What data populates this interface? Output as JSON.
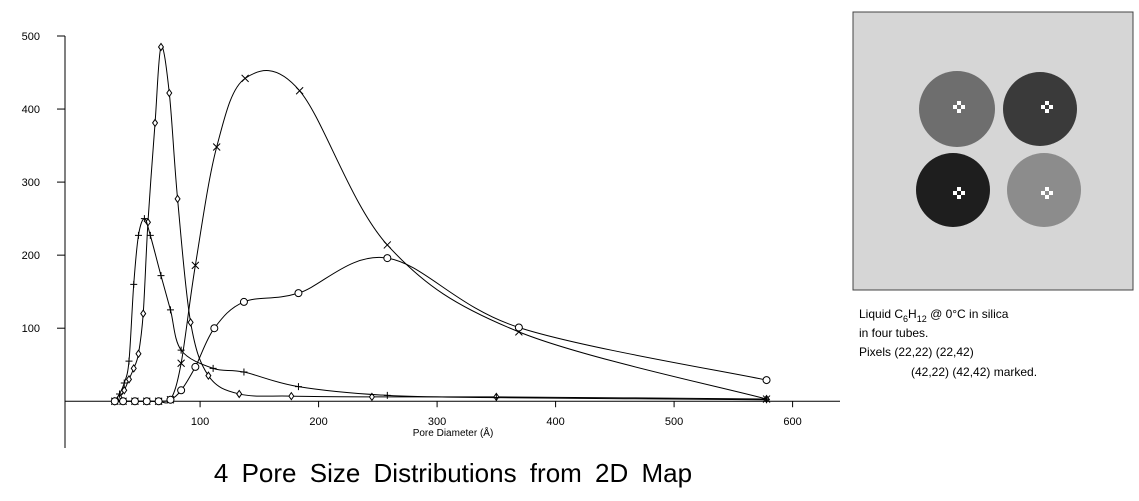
{
  "chart_data": {
    "type": "line",
    "title": "4 Pore Size Distributions from 2D Map",
    "x_label": "Pore Diameter (Å)",
    "xlim": [
      -14,
      640
    ],
    "ylim": [
      -64,
      500
    ],
    "xticks": [
      100,
      200,
      300,
      400,
      500,
      600
    ],
    "yticks": [
      100,
      200,
      300,
      400,
      500
    ],
    "grid": false,
    "series": [
      {
        "marker": "diamond",
        "color": "#000000",
        "x": [
          28,
          32,
          36,
          40,
          44,
          48,
          52,
          56,
          62,
          67,
          74,
          81,
          92,
          107,
          133,
          177,
          245,
          350,
          578
        ],
        "values": [
          0,
          5,
          15,
          30,
          45,
          65,
          120,
          245,
          381,
          485,
          422,
          277,
          108,
          35,
          10,
          7,
          6,
          6,
          3
        ]
      },
      {
        "marker": "plus",
        "color": "#000000",
        "x": [
          28,
          32,
          36,
          40,
          44,
          48,
          53,
          58,
          67,
          75,
          84,
          111,
          137,
          183,
          258,
          350,
          578
        ],
        "values": [
          0,
          10,
          25,
          55,
          160,
          227,
          250,
          227,
          172,
          125,
          70,
          45,
          40,
          20,
          8,
          5,
          2
        ]
      },
      {
        "marker": "cross",
        "color": "#000000",
        "x": [
          28,
          35,
          45,
          55,
          65,
          75,
          84,
          96,
          114,
          138,
          184,
          258,
          369,
          578
        ],
        "values": [
          0,
          0,
          0,
          0,
          0,
          2,
          52,
          186,
          348,
          442,
          425,
          214,
          95,
          3
        ]
      },
      {
        "marker": "circle",
        "color": "#000000",
        "x": [
          28,
          35,
          45,
          55,
          65,
          75,
          84,
          96,
          112,
          137,
          183,
          258,
          369,
          578
        ],
        "values": [
          0,
          0,
          0,
          0,
          0,
          2,
          15,
          47,
          100,
          136,
          148,
          196,
          101,
          29
        ]
      }
    ]
  },
  "inset": {
    "caption": {
      "line1": {
        "a": "Liquid C",
        "b": "6",
        "c": "H",
        "d": "12",
        "e": " @ 0°C in silica"
      },
      "line2": "in four tubes.",
      "line3": "Pixels (22,22) (22,42)",
      "line4": "(42,22) (42,42) marked."
    }
  }
}
